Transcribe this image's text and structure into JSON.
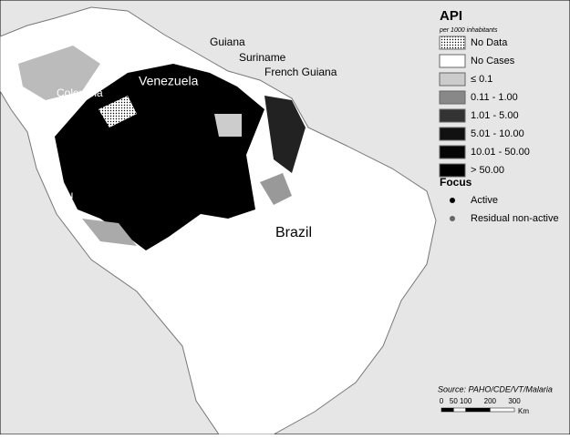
{
  "map": {
    "labels": [
      "Guiana",
      "Suriname",
      "French Guiana",
      "Colombia",
      "Venezuela",
      "Peru",
      "Brazil"
    ]
  },
  "legend": {
    "title": "API",
    "subtitle": "per 1000 inhabitants",
    "items": [
      "No Data",
      "No Cases",
      "≤ 0.1",
      "0.11 - 1.00",
      "1.01 - 5.00",
      "5.01 - 10.00",
      "10.01 - 50.00",
      "> 50.00"
    ],
    "focus_title": "Focus",
    "focus_items": [
      "Active",
      "Residual non-active"
    ]
  },
  "source": "Source: PAHO/CDE/VT/Malaria",
  "scale": {
    "ticks": [
      0,
      50,
      100,
      200,
      300
    ],
    "unit": "Km"
  }
}
